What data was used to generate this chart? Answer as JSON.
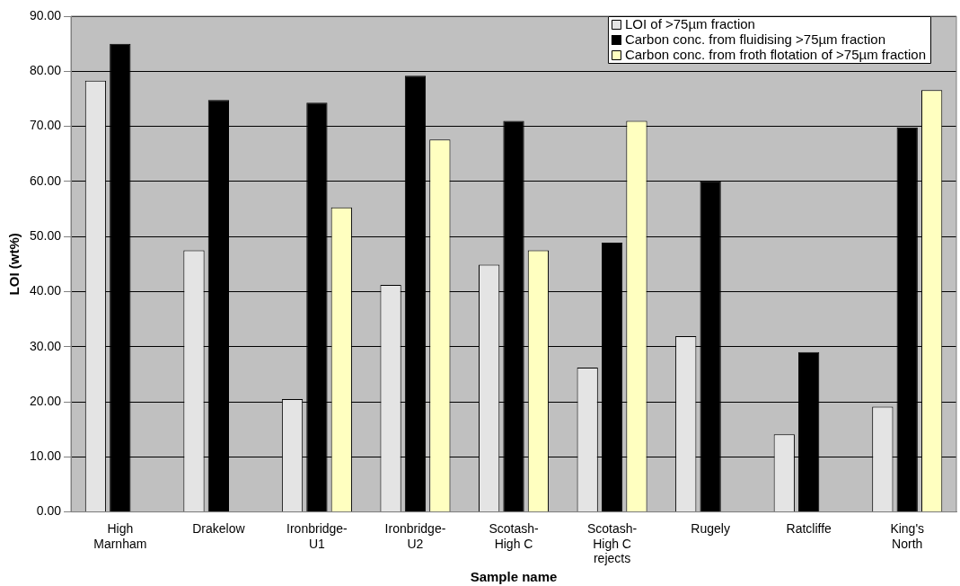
{
  "chart_data": {
    "type": "bar",
    "xlabel": "Sample name",
    "ylabel": "LOI (wt%)",
    "categories": [
      "High Marnham",
      "Drakelow",
      "Ironbridge-U1",
      "Ironbridge-U2",
      "Scotash-High C",
      "Scotash-High C rejects",
      "Rugely",
      "Ratcliffe",
      "King's North"
    ],
    "series": [
      {
        "name": "LOI of >75µm fraction",
        "color": "#e4e4e4",
        "values": [
          78.3,
          47.5,
          20.5,
          41.2,
          44.9,
          26.2,
          31.9,
          14.1,
          19.1
        ]
      },
      {
        "name": "Carbon conc. from fluidising >75µm fraction",
        "color": "#000000",
        "values": [
          85.0,
          74.8,
          74.3,
          79.2,
          71.0,
          48.9,
          60.0,
          29.0,
          69.8
        ]
      },
      {
        "name": "Carbon conc. from froth flotation of >75µm fraction",
        "color": "#ffffc0",
        "values": [
          null,
          null,
          55.3,
          67.6,
          47.5,
          71.0,
          null,
          null,
          76.6
        ]
      }
    ],
    "ylim": [
      0,
      90
    ],
    "yticks": [
      {
        "value": 0,
        "label": "0.00"
      },
      {
        "value": 10,
        "label": "10.00"
      },
      {
        "value": 20,
        "label": "20.00"
      },
      {
        "value": 30,
        "label": "30.00"
      },
      {
        "value": 40,
        "label": "40.00"
      },
      {
        "value": 50,
        "label": "50.00"
      },
      {
        "value": 60,
        "label": "60.00"
      },
      {
        "value": 70,
        "label": "70.00"
      },
      {
        "value": 80,
        "label": "80.00"
      },
      {
        "value": 90,
        "label": "90.00"
      }
    ],
    "grid": "y",
    "legend": "top right"
  }
}
